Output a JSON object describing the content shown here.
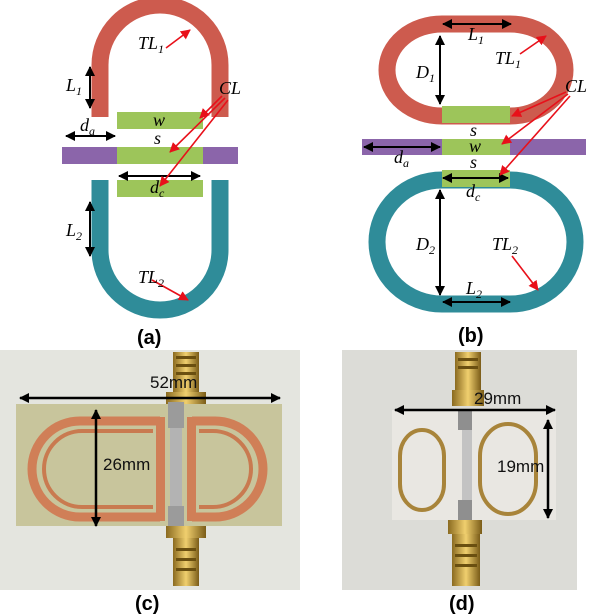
{
  "panel_a": {
    "tl1": "TL",
    "tl1_sub": "1",
    "l1": "L",
    "l1_sub": "1",
    "cl": "CL",
    "w": "w",
    "s": "s",
    "da": "d",
    "da_sub": "a",
    "dc": "d",
    "dc_sub": "c",
    "l2": "L",
    "l2_sub": "2",
    "tl2": "TL",
    "tl2_sub": "2",
    "caption": "(a)"
  },
  "panel_b": {
    "l1": "L",
    "l1_sub": "1",
    "d1": "D",
    "d1_sub": "1",
    "tl1": "TL",
    "tl1_sub": "1",
    "cl": "CL",
    "s_top": "s",
    "w": "w",
    "s_bottom": "s",
    "da": "d",
    "da_sub": "a",
    "dc": "d",
    "dc_sub": "c",
    "d2": "D",
    "d2_sub": "2",
    "tl2": "TL",
    "tl2_sub": "2",
    "l2": "L",
    "l2_sub": "2",
    "caption": "(b)"
  },
  "panel_c": {
    "width_label": "52mm",
    "height_label": "26mm",
    "caption": "(c)"
  },
  "panel_d": {
    "width_label": "29mm",
    "height_label": "19mm",
    "caption": "(d)"
  },
  "colors": {
    "trace_red": "#cd5b4e",
    "trace_teal": "#2f8c99",
    "coupling_green": "#9dc55a",
    "feedline_purple": "#8b65aa",
    "arrow_red": "#e8101a",
    "substrate_green": "#c8c59c",
    "copper": "#d07f57",
    "substrate_white": "#e9e7e2",
    "gold": "#d3a43a"
  }
}
